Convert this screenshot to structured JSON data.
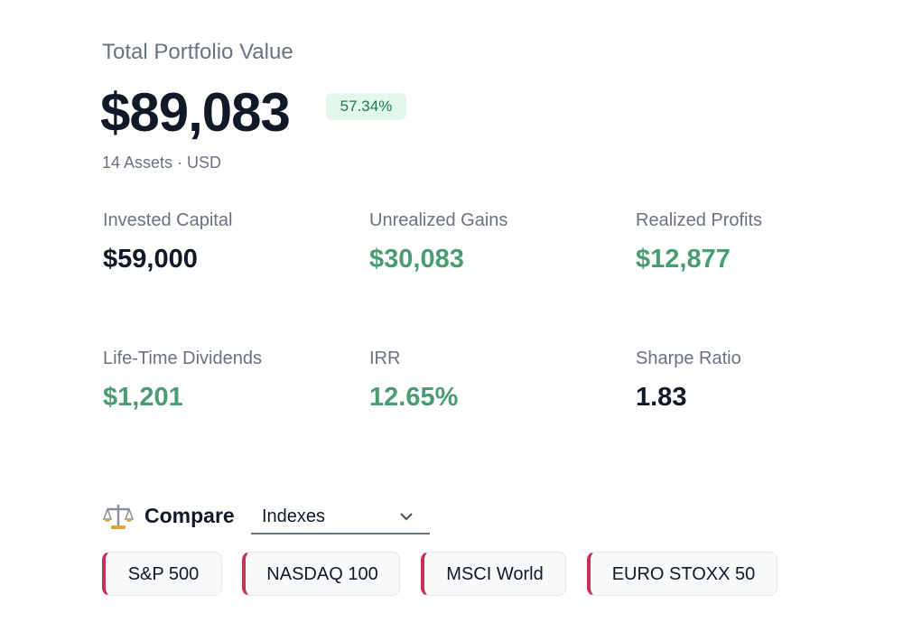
{
  "header": {
    "title": "Total Portfolio Value",
    "value": "$89,083",
    "change": "57.34%",
    "subtitle": "14 Assets · USD"
  },
  "metrics": [
    {
      "label": "Invested Capital",
      "value": "$59,000"
    },
    {
      "label": "Unrealized Gains",
      "value": "$30,083"
    },
    {
      "label": "Realized Profits",
      "value": "$12,877"
    },
    {
      "label": "Life-Time Dividends",
      "value": "$1,201"
    },
    {
      "label": "IRR",
      "value": "12.65%"
    },
    {
      "label": "Sharpe Ratio",
      "value": "1.83"
    }
  ],
  "compare": {
    "label": "Compare",
    "selected": "Indexes",
    "chips": [
      "S&P 500",
      "NASDAQ 100",
      "MSCI World",
      "EURO STOXX 50"
    ]
  }
}
